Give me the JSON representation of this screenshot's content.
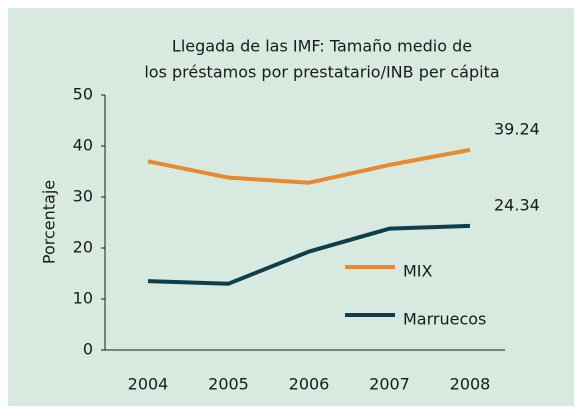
{
  "chart_data": {
    "type": "line",
    "title": [
      "Llegada de las IMF: Tamaño medio de",
      "los préstamos por prestatario/INB per cápita"
    ],
    "y_label": "Porcentaje",
    "categories": [
      "2004",
      "2005",
      "2006",
      "2007",
      "2008"
    ],
    "series": [
      {
        "name": "MIX",
        "color": "#e8892f",
        "values": [
          37,
          33.8,
          32.8,
          36.3,
          39.24
        ]
      },
      {
        "name": "Marruecos",
        "color": "#0e3e4b",
        "values": [
          13.5,
          13,
          19.3,
          23.8,
          24.34
        ]
      }
    ],
    "ylim": [
      0,
      50
    ],
    "yticks": [
      0,
      10,
      20,
      30,
      40,
      50
    ],
    "grid": false
  }
}
